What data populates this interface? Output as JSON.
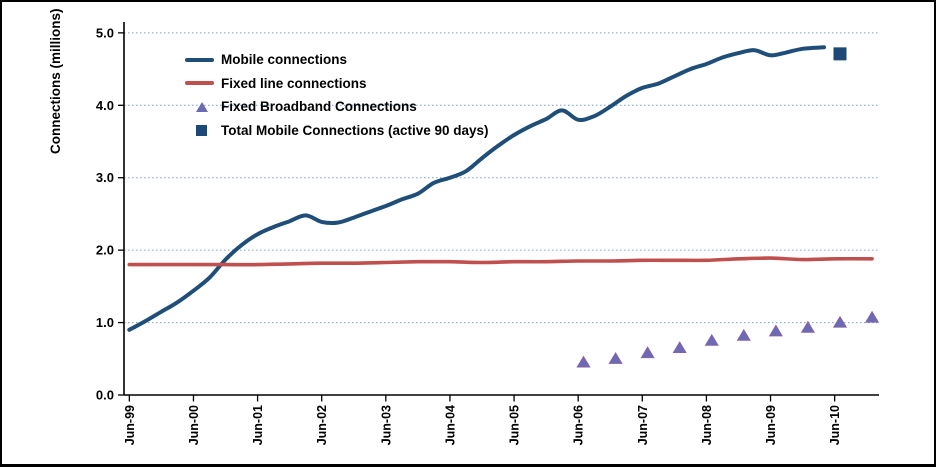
{
  "window": {
    "background": "#FFFFFF",
    "border_color": "#000000"
  },
  "chart_data": {
    "type": "line",
    "title": "",
    "xlabel": "",
    "ylabel": "Connections (millions)",
    "ylim": [
      0,
      5.15
    ],
    "xlim_months_since_jun99": [
      -1,
      140.3
    ],
    "grid": "horizontal dotted gridlines at 1.0 intervals",
    "legend_position": "upper-left inside plot",
    "colors": {
      "mobile_line": "#1F4E79",
      "fixed_line": "#C0504D",
      "broadband_marker_fill": "#6B6BB3",
      "broadband_marker_edge": "#8661A8",
      "total_mobile_marker": "#1E4876",
      "gridline": "#7F9BC8",
      "axis": "#000000",
      "text": "#000000"
    },
    "y_ticks": [
      {
        "v": 0,
        "label": "0.0"
      },
      {
        "v": 1,
        "label": "1.0"
      },
      {
        "v": 2,
        "label": "2.0"
      },
      {
        "v": 3,
        "label": "3.0"
      },
      {
        "v": 4,
        "label": "4.0"
      },
      {
        "v": 5,
        "label": "5.0"
      }
    ],
    "x_ticks": [
      {
        "m": 0,
        "label": "Jun-99"
      },
      {
        "m": 12,
        "label": "Jun-00"
      },
      {
        "m": 24,
        "label": "Jun-01"
      },
      {
        "m": 36,
        "label": "Jun-02"
      },
      {
        "m": 48,
        "label": "Jun-03"
      },
      {
        "m": 60,
        "label": "Jun-04"
      },
      {
        "m": 72,
        "label": "Jun-05"
      },
      {
        "m": 84,
        "label": "Jun-06"
      },
      {
        "m": 96,
        "label": "Jun-07"
      },
      {
        "m": 108,
        "label": "Jun-08"
      },
      {
        "m": 120,
        "label": "Jun-09"
      },
      {
        "m": 132,
        "label": "Jun-10"
      }
    ],
    "series": [
      {
        "name": "Mobile connections",
        "type": "line",
        "color": "#1F4E79",
        "stroke_width": 4,
        "points": {
          "months": [
            0,
            3,
            6,
            9,
            12,
            15,
            18,
            21,
            24,
            27,
            30,
            33,
            36,
            39,
            42,
            45,
            48,
            51,
            54,
            57,
            60,
            63,
            66,
            69,
            72,
            75,
            78,
            81,
            84,
            87,
            90,
            93,
            96,
            99,
            102,
            105,
            108,
            111,
            114,
            117,
            120,
            123,
            126,
            130
          ],
          "values": [
            0.9,
            1.02,
            1.15,
            1.28,
            1.44,
            1.62,
            1.87,
            2.07,
            2.22,
            2.32,
            2.4,
            2.48,
            2.39,
            2.38,
            2.45,
            2.53,
            2.61,
            2.7,
            2.78,
            2.93,
            3.0,
            3.09,
            3.27,
            3.44,
            3.59,
            3.71,
            3.81,
            3.93,
            3.8,
            3.85,
            3.98,
            4.13,
            4.24,
            4.3,
            4.4,
            4.5,
            4.57,
            4.66,
            4.72,
            4.76,
            4.69,
            4.73,
            4.78,
            4.8
          ]
        }
      },
      {
        "name": "Fixed line connections",
        "type": "line",
        "color": "#C0504D",
        "stroke_width": 3.6,
        "points": {
          "months": [
            0,
            6,
            12,
            18,
            24,
            30,
            36,
            42,
            48,
            54,
            60,
            66,
            72,
            78,
            84,
            90,
            96,
            102,
            108,
            114,
            120,
            126,
            132,
            139
          ],
          "values": [
            1.8,
            1.8,
            1.8,
            1.8,
            1.8,
            1.81,
            1.82,
            1.82,
            1.83,
            1.84,
            1.84,
            1.83,
            1.84,
            1.84,
            1.85,
            1.85,
            1.86,
            1.86,
            1.86,
            1.88,
            1.89,
            1.87,
            1.88,
            1.88
          ]
        }
      },
      {
        "name": "Fixed Broadband Connections",
        "type": "scatter",
        "marker": "triangle",
        "color": "#6B6BB3",
        "edge_color": "#8661A8",
        "points": {
          "period_labels": [
            "Jun-06",
            "Dec-06",
            "Jun-07",
            "Dec-07",
            "Jun-08",
            "Dec-08",
            "Jun-09",
            "Dec-09",
            "Jun-10",
            "Dec-10"
          ],
          "months": [
            85,
            91,
            97,
            103,
            109,
            115,
            121,
            127,
            133,
            139
          ],
          "values": [
            0.45,
            0.5,
            0.58,
            0.65,
            0.75,
            0.82,
            0.88,
            0.93,
            1.0,
            1.07
          ]
        }
      },
      {
        "name": "Total Mobile Connections (active 90 days)",
        "type": "scatter",
        "marker": "square",
        "color": "#1E4876",
        "points": {
          "period_labels": [
            "Jun-10"
          ],
          "months": [
            133
          ],
          "values": [
            4.71
          ]
        }
      }
    ]
  }
}
